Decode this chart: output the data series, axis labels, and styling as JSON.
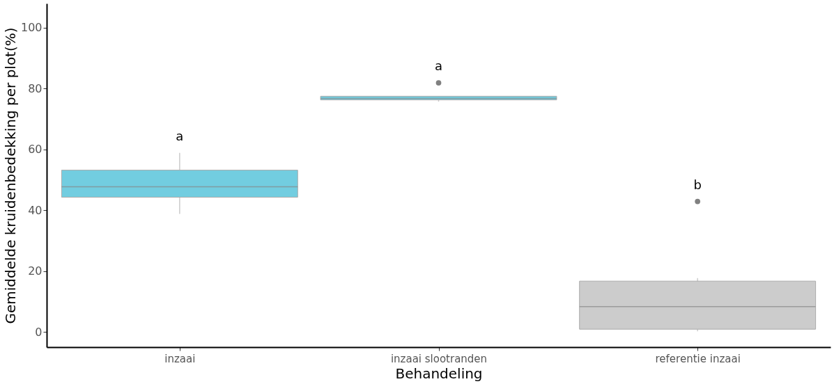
{
  "chart_data": {
    "type": "box",
    "xlabel": "Behandeling",
    "ylabel": "Gemiddelde kruidenbedekking per plot(%)",
    "categories": [
      "inzaai",
      "inzaai slootranden",
      "referentie inzaai"
    ],
    "boxes": [
      {
        "low": 38.8,
        "q1": 44.3,
        "median": 47.7,
        "q3": 53.2,
        "high": 58.9
      },
      {
        "low": 75.7,
        "q1": 76.3,
        "median": 76.8,
        "q3": 77.5,
        "high": 77.5,
        "outliers": [
          81.9
        ]
      },
      {
        "low": 0.2,
        "q1": 0.9,
        "median": 8.3,
        "q3": 16.7,
        "high": 17.7,
        "outliers": [
          42.9
        ]
      }
    ],
    "colors": [
      "#72cde0",
      "#72cde0",
      "#cccccc"
    ],
    "ylim": [
      -5,
      108
    ],
    "yticks": [
      0,
      20,
      40,
      60,
      80,
      100
    ],
    "grid": false,
    "annotations": [
      "a",
      "a",
      "b"
    ]
  }
}
